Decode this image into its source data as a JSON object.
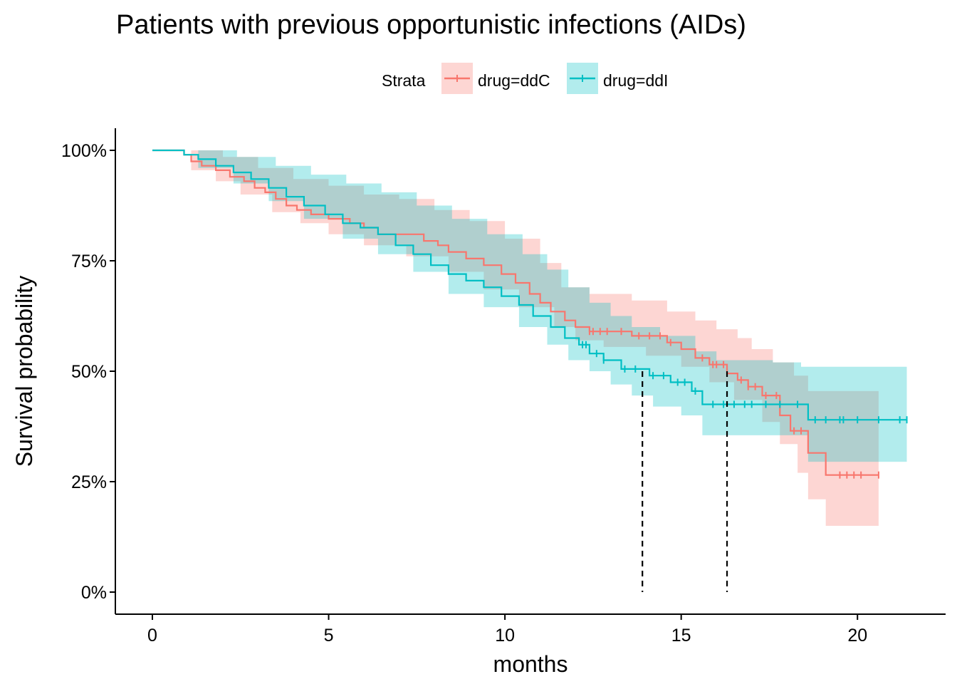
{
  "chart_data": {
    "type": "line",
    "title": "Patients with previous opportunistic infections (AIDs)",
    "xlabel": "months",
    "ylabel": "Survival probability",
    "xlim": [
      -1.05,
      22.5
    ],
    "ylim": [
      -0.05,
      1.05
    ],
    "x_ticks": [
      0,
      5,
      10,
      15,
      20
    ],
    "y_ticks": [
      0,
      0.25,
      0.5,
      0.75,
      1.0
    ],
    "y_tick_labels": [
      "0%",
      "25%",
      "50%",
      "75%",
      "100%"
    ],
    "legend": {
      "title": "Strata",
      "position": "top"
    },
    "grid": false,
    "median_lines": [
      13.9,
      16.3
    ],
    "series": [
      {
        "name": "drug=ddC",
        "color": "#F8766D",
        "fill": "#F8766D",
        "steps": [
          [
            0,
            1.0
          ],
          [
            0.9,
            0.99
          ],
          [
            1.1,
            0.975
          ],
          [
            1.4,
            0.965
          ],
          [
            1.8,
            0.955
          ],
          [
            2.2,
            0.94
          ],
          [
            2.6,
            0.93
          ],
          [
            2.9,
            0.915
          ],
          [
            3.2,
            0.905
          ],
          [
            3.5,
            0.89
          ],
          [
            3.8,
            0.875
          ],
          [
            4.1,
            0.865
          ],
          [
            4.5,
            0.855
          ],
          [
            5.0,
            0.845
          ],
          [
            5.6,
            0.835
          ],
          [
            6.0,
            0.825
          ],
          [
            6.4,
            0.81
          ],
          [
            7.0,
            0.81
          ],
          [
            7.7,
            0.795
          ],
          [
            8.1,
            0.785
          ],
          [
            8.4,
            0.77
          ],
          [
            8.9,
            0.755
          ],
          [
            9.4,
            0.74
          ],
          [
            9.9,
            0.72
          ],
          [
            10.3,
            0.7
          ],
          [
            10.7,
            0.675
          ],
          [
            11.0,
            0.655
          ],
          [
            11.3,
            0.635
          ],
          [
            11.7,
            0.615
          ],
          [
            12.0,
            0.6
          ],
          [
            12.4,
            0.59
          ],
          [
            13.6,
            0.58
          ],
          [
            14.6,
            0.565
          ],
          [
            15.0,
            0.55
          ],
          [
            15.4,
            0.53
          ],
          [
            15.8,
            0.515
          ],
          [
            16.3,
            0.495
          ],
          [
            16.6,
            0.48
          ],
          [
            16.9,
            0.465
          ],
          [
            17.3,
            0.445
          ],
          [
            17.8,
            0.4
          ],
          [
            18.1,
            0.365
          ],
          [
            18.6,
            0.315
          ],
          [
            19.1,
            0.265
          ],
          [
            20.6,
            0.265
          ]
        ],
        "lower": [
          [
            0,
            1.0
          ],
          [
            1.1,
            0.955
          ],
          [
            1.8,
            0.93
          ],
          [
            2.5,
            0.9
          ],
          [
            3.4,
            0.86
          ],
          [
            4.2,
            0.835
          ],
          [
            5.0,
            0.81
          ],
          [
            6.0,
            0.785
          ],
          [
            7.2,
            0.76
          ],
          [
            8.4,
            0.725
          ],
          [
            9.4,
            0.685
          ],
          [
            10.4,
            0.645
          ],
          [
            11.4,
            0.6
          ],
          [
            12.0,
            0.57
          ],
          [
            12.8,
            0.555
          ],
          [
            14.0,
            0.535
          ],
          [
            15.0,
            0.51
          ],
          [
            15.8,
            0.475
          ],
          [
            16.5,
            0.435
          ],
          [
            17.3,
            0.385
          ],
          [
            17.8,
            0.335
          ],
          [
            18.3,
            0.27
          ],
          [
            18.6,
            0.21
          ],
          [
            19.1,
            0.15
          ],
          [
            20.6,
            0.15
          ]
        ],
        "upper": [
          [
            0,
            1.0
          ],
          [
            1.0,
            1.0
          ],
          [
            2.0,
            0.985
          ],
          [
            3.0,
            0.96
          ],
          [
            4.0,
            0.935
          ],
          [
            5.0,
            0.92
          ],
          [
            6.0,
            0.9
          ],
          [
            7.0,
            0.89
          ],
          [
            8.0,
            0.865
          ],
          [
            9.0,
            0.84
          ],
          [
            10.0,
            0.8
          ],
          [
            11.0,
            0.745
          ],
          [
            11.6,
            0.69
          ],
          [
            12.4,
            0.675
          ],
          [
            13.6,
            0.66
          ],
          [
            14.6,
            0.635
          ],
          [
            15.4,
            0.615
          ],
          [
            16.0,
            0.595
          ],
          [
            16.6,
            0.575
          ],
          [
            17.0,
            0.55
          ],
          [
            17.6,
            0.52
          ],
          [
            18.2,
            0.49
          ],
          [
            18.6,
            0.455
          ],
          [
            19.1,
            0.455
          ],
          [
            20.6,
            0.455
          ]
        ],
        "censor_x": [
          12.4,
          12.5,
          12.7,
          12.9,
          13.3,
          13.8,
          14.1,
          14.4,
          14.7,
          15.6,
          15.9,
          16.0,
          16.2,
          16.7,
          16.9,
          17.1,
          17.4,
          17.7,
          18.2,
          18.4,
          19.5,
          19.7,
          19.9,
          20.1,
          20.6
        ]
      },
      {
        "name": "drug=ddI",
        "color": "#00BFC4",
        "fill": "#00BFC4",
        "steps": [
          [
            0,
            1.0
          ],
          [
            0.9,
            0.99
          ],
          [
            1.3,
            0.98
          ],
          [
            1.8,
            0.965
          ],
          [
            2.3,
            0.95
          ],
          [
            2.8,
            0.935
          ],
          [
            3.3,
            0.915
          ],
          [
            3.8,
            0.895
          ],
          [
            4.3,
            0.875
          ],
          [
            4.9,
            0.855
          ],
          [
            5.4,
            0.835
          ],
          [
            5.9,
            0.825
          ],
          [
            6.4,
            0.81
          ],
          [
            6.9,
            0.785
          ],
          [
            7.4,
            0.765
          ],
          [
            7.9,
            0.74
          ],
          [
            8.4,
            0.72
          ],
          [
            8.9,
            0.705
          ],
          [
            9.4,
            0.69
          ],
          [
            9.9,
            0.67
          ],
          [
            10.4,
            0.65
          ],
          [
            10.8,
            0.625
          ],
          [
            11.3,
            0.6
          ],
          [
            11.7,
            0.575
          ],
          [
            12.1,
            0.56
          ],
          [
            12.4,
            0.54
          ],
          [
            12.8,
            0.525
          ],
          [
            13.3,
            0.505
          ],
          [
            14.1,
            0.49
          ],
          [
            14.7,
            0.475
          ],
          [
            15.3,
            0.455
          ],
          [
            15.6,
            0.425
          ],
          [
            18.6,
            0.39
          ],
          [
            21.4,
            0.39
          ]
        ],
        "lower": [
          [
            0,
            1.0
          ],
          [
            1.3,
            0.96
          ],
          [
            2.3,
            0.925
          ],
          [
            3.3,
            0.885
          ],
          [
            4.3,
            0.845
          ],
          [
            5.4,
            0.8
          ],
          [
            6.4,
            0.765
          ],
          [
            7.4,
            0.725
          ],
          [
            8.4,
            0.675
          ],
          [
            9.4,
            0.645
          ],
          [
            10.4,
            0.6
          ],
          [
            11.2,
            0.56
          ],
          [
            11.8,
            0.525
          ],
          [
            12.4,
            0.5
          ],
          [
            13.0,
            0.47
          ],
          [
            13.6,
            0.445
          ],
          [
            14.2,
            0.42
          ],
          [
            15.0,
            0.4
          ],
          [
            15.6,
            0.355
          ],
          [
            17.3,
            0.355
          ],
          [
            18.6,
            0.295
          ],
          [
            21.4,
            0.295
          ]
        ],
        "upper": [
          [
            0,
            1.0
          ],
          [
            1.5,
            1.0
          ],
          [
            2.4,
            0.985
          ],
          [
            3.5,
            0.965
          ],
          [
            4.5,
            0.945
          ],
          [
            5.5,
            0.925
          ],
          [
            6.5,
            0.905
          ],
          [
            7.5,
            0.875
          ],
          [
            8.5,
            0.845
          ],
          [
            9.5,
            0.81
          ],
          [
            10.5,
            0.765
          ],
          [
            11.2,
            0.73
          ],
          [
            11.8,
            0.69
          ],
          [
            12.4,
            0.655
          ],
          [
            13.0,
            0.625
          ],
          [
            13.6,
            0.6
          ],
          [
            14.4,
            0.58
          ],
          [
            15.4,
            0.545
          ],
          [
            16.0,
            0.525
          ],
          [
            17.6,
            0.52
          ],
          [
            18.4,
            0.51
          ],
          [
            21.4,
            0.51
          ]
        ],
        "censor_x": [
          12.2,
          12.3,
          12.6,
          12.8,
          13.4,
          13.7,
          14.2,
          14.5,
          14.9,
          15.1,
          15.4,
          15.9,
          16.2,
          16.5,
          16.8,
          17.0,
          17.4,
          17.8,
          18.3,
          18.8,
          19.1,
          19.5,
          19.6,
          20.0,
          20.6,
          21.2,
          21.4
        ]
      }
    ]
  }
}
